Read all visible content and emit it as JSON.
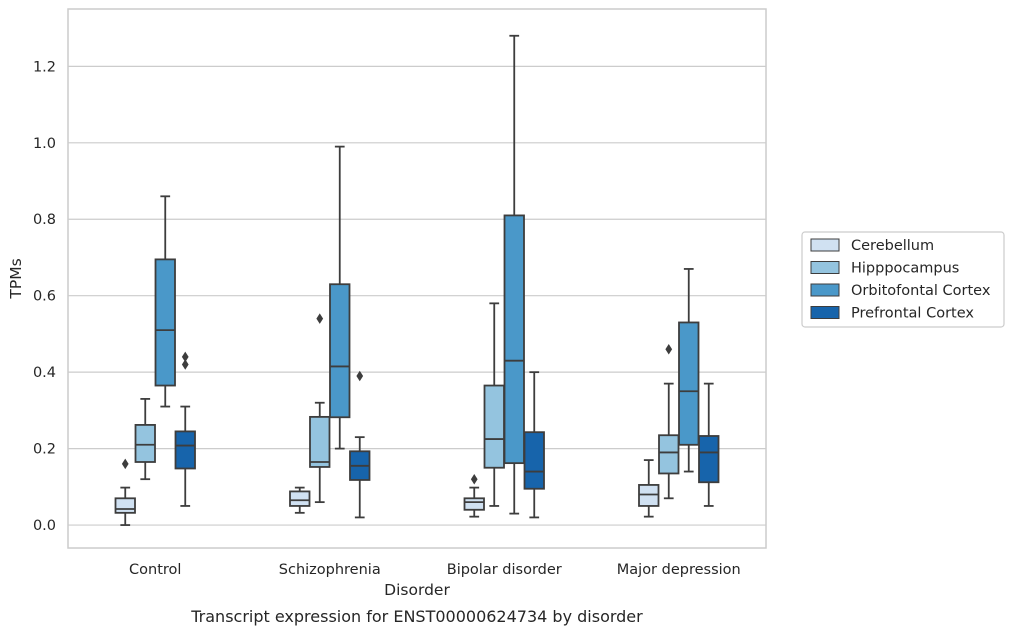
{
  "chart_data": {
    "type": "box",
    "title": "",
    "caption": "Transcript expression for ENST00000624734 by disorder",
    "xlabel": "Disorder",
    "ylabel": "TPMs",
    "ylim": [
      -0.06,
      1.35
    ],
    "yticks": [
      "0.0",
      "0.2",
      "0.4",
      "0.6",
      "0.8",
      "1.0",
      "1.2"
    ],
    "grid": "horizontal",
    "legend_position": "right",
    "categories": [
      "Control",
      "Schizophrenia",
      "Bipolar disorder",
      "Major depression"
    ],
    "series": [
      {
        "name": "Cerebellum",
        "color": "#d0e1f2",
        "boxes": [
          {
            "whislo": 0.0,
            "q1": 0.032,
            "med": 0.042,
            "q3": 0.07,
            "whishi": 0.098,
            "fliers": [
              0.16
            ]
          },
          {
            "whislo": 0.032,
            "q1": 0.05,
            "med": 0.065,
            "q3": 0.088,
            "whishi": 0.098,
            "fliers": []
          },
          {
            "whislo": 0.022,
            "q1": 0.04,
            "med": 0.06,
            "q3": 0.07,
            "whishi": 0.098,
            "fliers": [
              0.12
            ]
          },
          {
            "whislo": 0.022,
            "q1": 0.05,
            "med": 0.08,
            "q3": 0.105,
            "whishi": 0.17,
            "fliers": []
          }
        ]
      },
      {
        "name": "Hipppocampus",
        "color": "#94c4df",
        "boxes": [
          {
            "whislo": 0.12,
            "q1": 0.165,
            "med": 0.21,
            "q3": 0.262,
            "whishi": 0.33,
            "fliers": []
          },
          {
            "whislo": 0.06,
            "q1": 0.152,
            "med": 0.165,
            "q3": 0.283,
            "whishi": 0.32,
            "fliers": [
              0.54
            ]
          },
          {
            "whislo": 0.05,
            "q1": 0.15,
            "med": 0.225,
            "q3": 0.365,
            "whishi": 0.58,
            "fliers": []
          },
          {
            "whislo": 0.07,
            "q1": 0.135,
            "med": 0.19,
            "q3": 0.235,
            "whishi": 0.37,
            "fliers": [
              0.46
            ]
          }
        ]
      },
      {
        "name": "Orbitofontal Cortex",
        "color": "#4a98c9",
        "boxes": [
          {
            "whislo": 0.31,
            "q1": 0.365,
            "med": 0.51,
            "q3": 0.695,
            "whishi": 0.86,
            "fliers": []
          },
          {
            "whislo": 0.2,
            "q1": 0.282,
            "med": 0.415,
            "q3": 0.63,
            "whishi": 0.99,
            "fliers": []
          },
          {
            "whislo": 0.03,
            "q1": 0.162,
            "med": 0.43,
            "q3": 0.81,
            "whishi": 1.28,
            "fliers": []
          },
          {
            "whislo": 0.14,
            "q1": 0.21,
            "med": 0.35,
            "q3": 0.53,
            "whishi": 0.67,
            "fliers": []
          }
        ]
      },
      {
        "name": "Prefrontal Cortex",
        "color": "#1764ab",
        "boxes": [
          {
            "whislo": 0.05,
            "q1": 0.148,
            "med": 0.208,
            "q3": 0.245,
            "whishi": 0.31,
            "fliers": [
              0.42,
              0.44
            ]
          },
          {
            "whislo": 0.02,
            "q1": 0.118,
            "med": 0.155,
            "q3": 0.193,
            "whishi": 0.23,
            "fliers": [
              0.39
            ]
          },
          {
            "whislo": 0.02,
            "q1": 0.095,
            "med": 0.14,
            "q3": 0.243,
            "whishi": 0.4,
            "fliers": []
          },
          {
            "whislo": 0.05,
            "q1": 0.112,
            "med": 0.19,
            "q3": 0.233,
            "whishi": 0.37,
            "fliers": []
          }
        ]
      }
    ]
  }
}
